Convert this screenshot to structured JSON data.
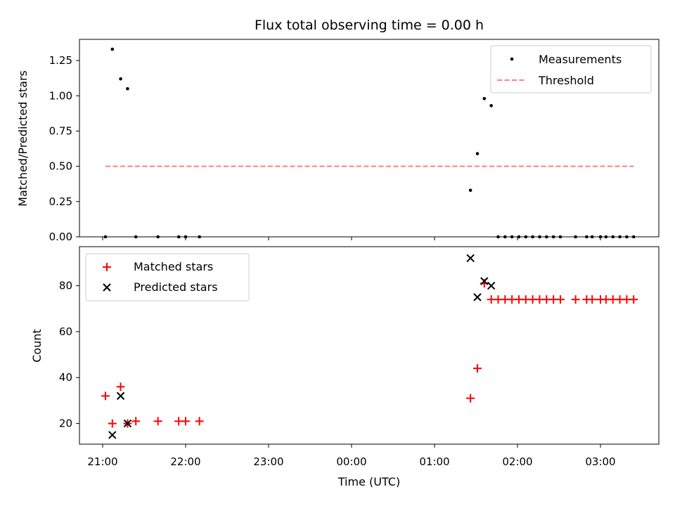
{
  "chart_data": [
    {
      "type": "scatter",
      "title": "Flux total observing time = 0.00 h",
      "xlabel": "",
      "ylabel": "Matched/Predicted stars",
      "ylim": [
        0,
        1.4
      ],
      "yticks": [
        "0.00",
        "0.25",
        "0.50",
        "0.75",
        "1.00",
        "1.25"
      ],
      "legend_position": "upper right",
      "grid": false,
      "series": [
        {
          "name": "Measurements",
          "marker": "dot",
          "color": "#000000",
          "points": [
            [
              "21:02",
              0.0
            ],
            [
              "21:07",
              1.33
            ],
            [
              "21:13",
              1.12
            ],
            [
              "21:18",
              1.05
            ],
            [
              "21:24",
              0.0
            ],
            [
              "21:40",
              0.0
            ],
            [
              "21:55",
              0.0
            ],
            [
              "22:00",
              0.0
            ],
            [
              "22:10",
              0.0
            ],
            [
              "25:26",
              0.33
            ],
            [
              "25:31",
              0.59
            ],
            [
              "25:36",
              0.98
            ],
            [
              "25:41",
              0.93
            ],
            [
              "25:46",
              0.0
            ],
            [
              "25:51",
              0.0
            ],
            [
              "25:56",
              0.0
            ],
            [
              "26:01",
              0.0
            ],
            [
              "26:06",
              0.0
            ],
            [
              "26:11",
              0.0
            ],
            [
              "26:16",
              0.0
            ],
            [
              "26:21",
              0.0
            ],
            [
              "26:26",
              0.0
            ],
            [
              "26:31",
              0.0
            ],
            [
              "26:42",
              0.0
            ],
            [
              "26:50",
              0.0
            ],
            [
              "26:54",
              0.0
            ],
            [
              "27:00",
              0.0
            ],
            [
              "27:04",
              0.0
            ],
            [
              "27:09",
              0.0
            ],
            [
              "27:14",
              0.0
            ],
            [
              "27:19",
              0.0
            ],
            [
              "27:24",
              0.0
            ]
          ]
        },
        {
          "name": "Threshold",
          "marker": "dashed-line",
          "color": "#ff7f7f",
          "x_range": [
            "21:02",
            "27:24"
          ],
          "value": 0.5
        }
      ]
    },
    {
      "type": "scatter",
      "title": "",
      "xlabel": "Time (UTC)",
      "ylabel": "Count",
      "ylim": [
        11,
        97
      ],
      "yticks": [
        "20",
        "40",
        "60",
        "80"
      ],
      "xticks": [
        "21:00",
        "22:00",
        "23:00",
        "00:00",
        "01:00",
        "02:00",
        "03:00"
      ],
      "legend_position": "upper left",
      "grid": false,
      "series": [
        {
          "name": "Matched stars",
          "marker": "plus",
          "color": "#ff0000",
          "points": [
            [
              "21:02",
              32
            ],
            [
              "21:07",
              20
            ],
            [
              "21:13",
              36
            ],
            [
              "21:18",
              20
            ],
            [
              "21:24",
              21
            ],
            [
              "21:40",
              21
            ],
            [
              "21:55",
              21
            ],
            [
              "22:00",
              21
            ],
            [
              "22:10",
              21
            ],
            [
              "25:26",
              31
            ],
            [
              "25:31",
              44
            ],
            [
              "25:36",
              81
            ],
            [
              "25:41",
              74
            ],
            [
              "25:46",
              74
            ],
            [
              "25:51",
              74
            ],
            [
              "25:56",
              74
            ],
            [
              "26:01",
              74
            ],
            [
              "26:06",
              74
            ],
            [
              "26:11",
              74
            ],
            [
              "26:16",
              74
            ],
            [
              "26:21",
              74
            ],
            [
              "26:26",
              74
            ],
            [
              "26:31",
              74
            ],
            [
              "26:42",
              74
            ],
            [
              "26:50",
              74
            ],
            [
              "26:54",
              74
            ],
            [
              "27:00",
              74
            ],
            [
              "27:04",
              74
            ],
            [
              "27:09",
              74
            ],
            [
              "27:14",
              74
            ],
            [
              "27:19",
              74
            ],
            [
              "27:24",
              74
            ]
          ]
        },
        {
          "name": "Predicted stars",
          "marker": "x",
          "color": "#000000",
          "points": [
            [
              "21:07",
              15
            ],
            [
              "21:13",
              32
            ],
            [
              "21:18",
              20
            ],
            [
              "25:26",
              92
            ],
            [
              "25:31",
              75
            ],
            [
              "25:36",
              82
            ],
            [
              "25:41",
              80
            ]
          ]
        }
      ]
    }
  ]
}
